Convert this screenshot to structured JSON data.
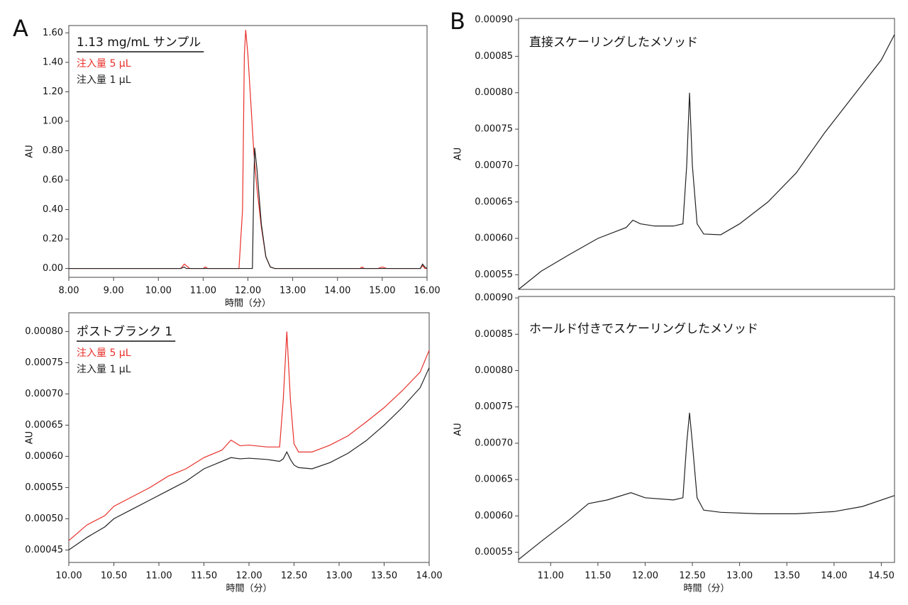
{
  "chart_data": [
    {
      "type": "line",
      "panel_label": "A",
      "title": "1.13 mg/mL サンプル",
      "xlabel": "時間（分）",
      "ylabel": "AU",
      "x": [
        8,
        10.5,
        10.58,
        10.62,
        10.7,
        11.0,
        11.05,
        11.1,
        11.8,
        11.88,
        11.92,
        11.95,
        12.0,
        12.05,
        12.1,
        12.13,
        12.15,
        12.2,
        12.3,
        12.4,
        12.5,
        12.6,
        14.5,
        14.55,
        14.6,
        14.9,
        15.0,
        15.1,
        15.85,
        15.9,
        15.95,
        16
      ],
      "series": [
        {
          "name": "注入量 5 µL",
          "color": "#e8302a",
          "values": [
            0,
            0,
            0.03,
            0.02,
            0,
            0,
            0.01,
            0,
            0,
            0.4,
            1.45,
            1.62,
            1.45,
            1.2,
            0.95,
            0.8,
            0.72,
            0.55,
            0.28,
            0.08,
            0.01,
            0,
            0,
            0.01,
            0,
            0,
            0.01,
            0,
            0,
            0.02,
            0,
            0
          ]
        },
        {
          "name": "注入量 1 µL",
          "color": "#222222",
          "values": [
            0,
            0,
            0.01,
            0,
            0,
            0,
            0,
            0,
            0,
            0,
            0,
            0,
            0,
            0,
            0,
            0.55,
            0.82,
            0.68,
            0.3,
            0.08,
            0.01,
            0,
            0,
            0,
            0,
            0,
            0,
            0,
            0,
            0.03,
            0.01,
            0
          ]
        }
      ],
      "xlim": [
        8,
        16
      ],
      "ylim": [
        -0.06,
        1.65
      ],
      "xticks": [
        {
          "value": 8,
          "label": "8.00"
        },
        {
          "value": 9,
          "label": "9.00"
        },
        {
          "value": 10,
          "label": "10.00"
        },
        {
          "value": 11,
          "label": "11.00"
        },
        {
          "value": 12,
          "label": "12.00"
        },
        {
          "value": 13,
          "label": "13.00"
        },
        {
          "value": 14,
          "label": "14.00"
        },
        {
          "value": 15,
          "label": "15.00"
        },
        {
          "value": 16,
          "label": "16.00"
        }
      ],
      "yticks": [
        {
          "value": 0,
          "label": "0.00"
        },
        {
          "value": 0.2,
          "label": "0.20"
        },
        {
          "value": 0.4,
          "label": "0.40"
        },
        {
          "value": 0.6,
          "label": "0.60"
        },
        {
          "value": 0.8,
          "label": "0.80"
        },
        {
          "value": 1.0,
          "label": "1.00"
        },
        {
          "value": 1.2,
          "label": "1.20"
        },
        {
          "value": 1.4,
          "label": "1.40"
        },
        {
          "value": 1.6,
          "label": "1.60"
        }
      ]
    },
    {
      "type": "line",
      "title": "ポストブランク 1",
      "xlabel": "時間（分）",
      "ylabel": "AU",
      "x": [
        10.0,
        10.2,
        10.4,
        10.5,
        10.7,
        10.9,
        11.1,
        11.3,
        11.5,
        11.7,
        11.8,
        11.9,
        12.0,
        12.2,
        12.34,
        12.38,
        12.42,
        12.46,
        12.5,
        12.55,
        12.7,
        12.9,
        13.1,
        13.3,
        13.5,
        13.7,
        13.9,
        14.0
      ],
      "series": [
        {
          "name": "注入量 5 µL",
          "color": "#e8302a",
          "values": [
            0.000465,
            0.00049,
            0.000505,
            0.00052,
            0.000535,
            0.00055,
            0.000568,
            0.00058,
            0.000598,
            0.00061,
            0.000626,
            0.000617,
            0.000618,
            0.000615,
            0.000615,
            0.00069,
            0.0008,
            0.00069,
            0.00062,
            0.000607,
            0.000607,
            0.000618,
            0.000633,
            0.000655,
            0.000678,
            0.000705,
            0.000735,
            0.00077
          ]
        },
        {
          "name": "注入量 1 µL",
          "color": "#222222",
          "values": [
            0.00045,
            0.00047,
            0.000487,
            0.0005,
            0.000515,
            0.00053,
            0.000545,
            0.00056,
            0.00058,
            0.000592,
            0.000598,
            0.000596,
            0.000597,
            0.000595,
            0.000592,
            0.000596,
            0.000607,
            0.000595,
            0.000586,
            0.000582,
            0.00058,
            0.00059,
            0.000605,
            0.000625,
            0.00065,
            0.000678,
            0.00071,
            0.000742
          ]
        }
      ],
      "xlim": [
        10,
        14
      ],
      "ylim": [
        0.00043,
        0.00083
      ],
      "xticks": [
        {
          "value": 10,
          "label": "10.00"
        },
        {
          "value": 10.5,
          "label": "10.50"
        },
        {
          "value": 11,
          "label": "11.00"
        },
        {
          "value": 11.5,
          "label": "11.50"
        },
        {
          "value": 12,
          "label": "12.00"
        },
        {
          "value": 12.5,
          "label": "12.50"
        },
        {
          "value": 13,
          "label": "13.00"
        },
        {
          "value": 13.5,
          "label": "13.50"
        },
        {
          "value": 14,
          "label": "14.00"
        }
      ],
      "yticks": [
        {
          "value": 0.00045,
          "label": "0.00045"
        },
        {
          "value": 0.0005,
          "label": "0.00050"
        },
        {
          "value": 0.00055,
          "label": "0.00055"
        },
        {
          "value": 0.0006,
          "label": "0.00060"
        },
        {
          "value": 0.00065,
          "label": "0.00065"
        },
        {
          "value": 0.0007,
          "label": "0.00070"
        },
        {
          "value": 0.00075,
          "label": "0.00075"
        },
        {
          "value": 0.0008,
          "label": "0.00080"
        }
      ]
    },
    {
      "type": "line",
      "panel_label": "B",
      "title": "直接スケーリングしたメソッド",
      "ylabel": "AU",
      "x": [
        10.66,
        10.9,
        11.2,
        11.5,
        11.8,
        11.87,
        11.95,
        12.1,
        12.3,
        12.4,
        12.44,
        12.47,
        12.5,
        12.55,
        12.62,
        12.8,
        13.0,
        13.3,
        13.6,
        13.9,
        14.2,
        14.5,
        14.64
      ],
      "values": [
        0.00053,
        0.000555,
        0.000578,
        0.0006,
        0.000615,
        0.000625,
        0.00062,
        0.000617,
        0.000617,
        0.00062,
        0.0007,
        0.0008,
        0.0007,
        0.00062,
        0.000606,
        0.000605,
        0.00062,
        0.00065,
        0.00069,
        0.000745,
        0.000795,
        0.000845,
        0.00088
      ],
      "color": "#222222",
      "xlim": [
        10.66,
        14.64
      ],
      "ylim": [
        0.00053,
        0.000902
      ],
      "yticks": [
        {
          "value": 0.00055,
          "label": "0.00055"
        },
        {
          "value": 0.0006,
          "label": "0.00060"
        },
        {
          "value": 0.00065,
          "label": "0.00065"
        },
        {
          "value": 0.0007,
          "label": "0.00070"
        },
        {
          "value": 0.00075,
          "label": "0.00075"
        },
        {
          "value": 0.0008,
          "label": "0.00080"
        },
        {
          "value": 0.00085,
          "label": "0.00085"
        },
        {
          "value": 0.0009,
          "label": "0.00090"
        }
      ]
    },
    {
      "type": "line",
      "title": "ホールド付きでスケーリングしたメソッド",
      "xlabel": "時間（分）",
      "ylabel": "AU",
      "x": [
        10.66,
        10.9,
        11.2,
        11.4,
        11.6,
        11.85,
        12.0,
        12.3,
        12.4,
        12.44,
        12.47,
        12.5,
        12.55,
        12.62,
        12.8,
        13.2,
        13.6,
        14.0,
        14.3,
        14.64
      ],
      "values": [
        0.00054,
        0.000565,
        0.000595,
        0.000617,
        0.000622,
        0.000632,
        0.000625,
        0.000622,
        0.000625,
        0.0007,
        0.000742,
        0.0007,
        0.000625,
        0.000608,
        0.000605,
        0.000603,
        0.000603,
        0.000606,
        0.000613,
        0.000628
      ],
      "color": "#222222",
      "xlim": [
        10.66,
        14.64
      ],
      "ylim": [
        0.000536,
        0.000902
      ],
      "xticks": [
        {
          "value": 11,
          "label": "11.00"
        },
        {
          "value": 11.5,
          "label": "11.50"
        },
        {
          "value": 12,
          "label": "12.00"
        },
        {
          "value": 12.5,
          "label": "12.50"
        },
        {
          "value": 13,
          "label": "13.00"
        },
        {
          "value": 13.5,
          "label": "13.50"
        },
        {
          "value": 14,
          "label": "14.00"
        },
        {
          "value": 14.5,
          "label": "14.50"
        }
      ],
      "yticks": [
        {
          "value": 0.00055,
          "label": "0.00055"
        },
        {
          "value": 0.0006,
          "label": "0.00060"
        },
        {
          "value": 0.00065,
          "label": "0.00065"
        },
        {
          "value": 0.0007,
          "label": "0.00070"
        },
        {
          "value": 0.00075,
          "label": "0.00075"
        },
        {
          "value": 0.0008,
          "label": "0.00080"
        },
        {
          "value": 0.00085,
          "label": "0.00085"
        },
        {
          "value": 0.0009,
          "label": "0.00090"
        }
      ]
    }
  ]
}
